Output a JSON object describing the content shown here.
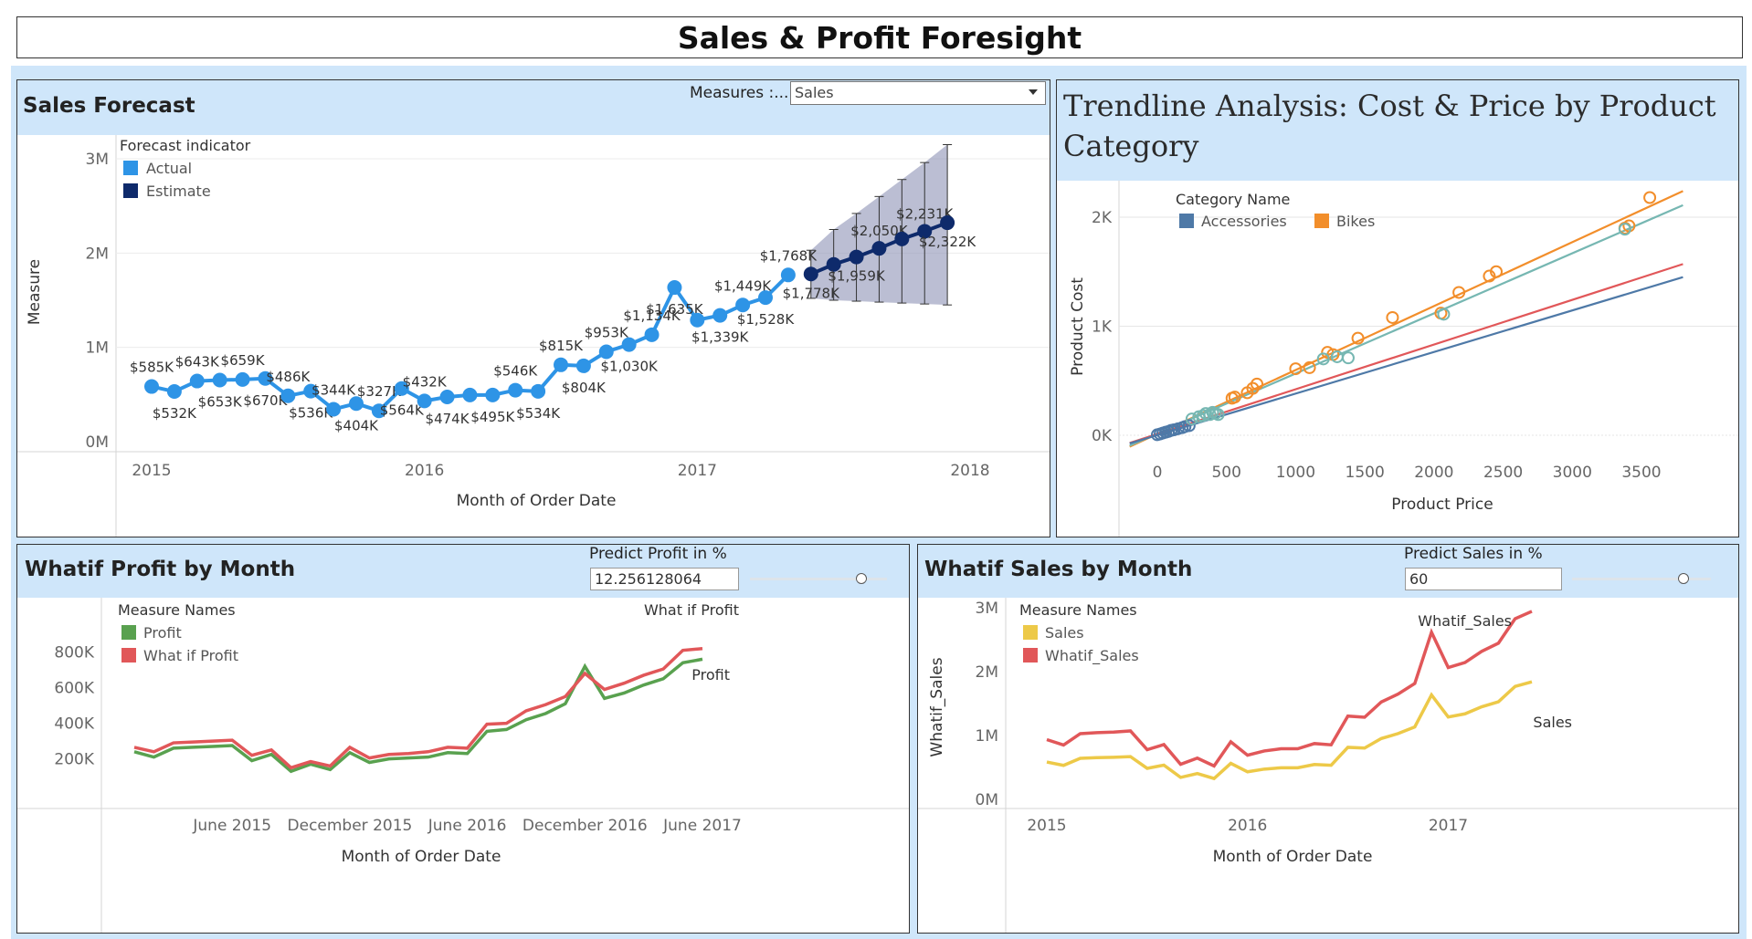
{
  "dashboard": {
    "title": "Sales & Profit Foresight"
  },
  "panels": {
    "sales_forecast": {
      "title": "Sales Forecast",
      "measures_label": "Measures :...",
      "measures_value": "Sales"
    },
    "trendline": {
      "title": "Trendline Analysis: Cost & Price by Product Category"
    },
    "whatif_profit": {
      "title": "Whatif Profit by Month",
      "param_label": "Predict Profit in %",
      "param_value": "12.256128064",
      "slider_fraction": 1.0
    },
    "whatif_sales": {
      "title": "Whatif Sales by Month",
      "param_label": "Predict Sales in %",
      "param_value": "60",
      "slider_fraction": 1.0
    }
  },
  "chart_data": [
    {
      "id": "sales_forecast",
      "type": "line",
      "xlabel": "Month of Order Date",
      "ylabel": "Measure",
      "x_ticks": [
        "2015",
        "2016",
        "2017",
        "2018"
      ],
      "y_ticks": [
        "0M",
        "1M",
        "2M",
        "3M"
      ],
      "ylim": [
        0,
        3000000
      ],
      "legend": {
        "title": "Forecast indicator",
        "placement": "top-left",
        "entries": [
          "Actual",
          "Estimate"
        ]
      },
      "colors": {
        "Actual": "#2e94e6",
        "Estimate": "#0e2a6b",
        "band": "#8d93b6"
      },
      "series": [
        {
          "name": "Actual",
          "x": [
            "2015-01",
            "2015-02",
            "2015-03",
            "2015-04",
            "2015-05",
            "2015-06",
            "2015-07",
            "2015-08",
            "2015-09",
            "2015-10",
            "2015-11",
            "2015-12",
            "2016-01",
            "2016-02",
            "2016-03",
            "2016-04",
            "2016-05",
            "2016-06",
            "2016-07",
            "2016-08",
            "2016-09",
            "2016-10",
            "2016-11",
            "2016-12",
            "2017-01",
            "2017-02",
            "2017-03",
            "2017-04",
            "2017-05"
          ],
          "values": [
            585000,
            532000,
            643000,
            653000,
            659000,
            670000,
            486000,
            536000,
            344000,
            404000,
            327000,
            564000,
            432000,
            474000,
            495000,
            495000,
            546000,
            534000,
            815000,
            804000,
            953000,
            1030000,
            1134000,
            1635000,
            1290000,
            1339000,
            1449000,
            1528000,
            1768000
          ],
          "labels": [
            "$585K",
            "$532K",
            "$643K",
            "$653K",
            "$659K",
            "$670K",
            "$486K",
            "$536K",
            "$344K",
            "$404K",
            "$327K",
            "$564K",
            "$432K",
            "$474K",
            "",
            "$495K",
            "$546K",
            "$534K",
            "$815K",
            "$804K",
            "$953K",
            "$1,030K",
            "$1,134K",
            "$1,635K",
            "",
            "$1,339K",
            "$1,449K",
            "$1,528K",
            "$1,768K"
          ]
        },
        {
          "name": "Estimate",
          "x": [
            "2017-06",
            "2017-07",
            "2017-08",
            "2017-09",
            "2017-10",
            "2017-11",
            "2017-12"
          ],
          "values": [
            1778000,
            1880000,
            1959000,
            2050000,
            2150000,
            2231000,
            2322000
          ],
          "labels": [
            "$1,778K",
            "",
            "$1,959K",
            "$2,050K",
            "",
            "$2,231K",
            "$2,322K"
          ],
          "band_low": [
            1520000,
            1500000,
            1490000,
            1480000,
            1470000,
            1460000,
            1450000
          ],
          "band_high": [
            2030000,
            2250000,
            2420000,
            2600000,
            2780000,
            2960000,
            3150000
          ]
        }
      ]
    },
    {
      "id": "trendline",
      "type": "scatter",
      "xlabel": "Product Price",
      "ylabel": "Product Cost",
      "x_ticks": [
        "0",
        "500",
        "1000",
        "1500",
        "2000",
        "2500",
        "3000",
        "3500"
      ],
      "y_ticks": [
        "0K",
        "1K",
        "2K"
      ],
      "xlim": [
        -200,
        3800
      ],
      "ylim": [
        -150,
        2200
      ],
      "legend": {
        "title": "Category Name",
        "placement": "top-left",
        "entries": [
          "Accessories",
          "Bikes"
        ]
      },
      "colors": {
        "Accessories": "#4e79a7",
        "Bikes": "#f28e2b",
        "Clothing": "#76b7b2",
        "Components": "#e15759"
      },
      "series": [
        {
          "name": "Accessories",
          "x": [
            0,
            20,
            40,
            60,
            80,
            100,
            120,
            150,
            180,
            200,
            230
          ],
          "y": [
            5,
            12,
            20,
            28,
            35,
            45,
            50,
            60,
            70,
            80,
            88
          ]
        },
        {
          "name": "Bikes",
          "x": [
            540,
            560,
            650,
            690,
            720,
            1000,
            1100,
            1230,
            1270,
            1450,
            1700,
            2050,
            2180,
            2400,
            2450,
            3380,
            3410,
            3560
          ],
          "y": [
            340,
            350,
            390,
            430,
            470,
            610,
            620,
            760,
            740,
            890,
            1080,
            1120,
            1310,
            1460,
            1500,
            1900,
            1920,
            2180
          ]
        },
        {
          "name": "Clothing",
          "x": [
            250,
            300,
            330,
            350,
            380,
            400,
            420,
            440,
            1200,
            1300,
            1380,
            2070,
            3380
          ],
          "y": [
            150,
            170,
            180,
            200,
            190,
            210,
            200,
            190,
            700,
            720,
            710,
            1110,
            1890
          ]
        },
        {
          "name": "Components",
          "x": [],
          "y": []
        }
      ],
      "trendlines": [
        {
          "name": "Bikes",
          "x": [
            -200,
            3800
          ],
          "y": [
            -105,
            2240
          ]
        },
        {
          "name": "Clothing",
          "x": [
            -200,
            3800
          ],
          "y": [
            -95,
            2110
          ]
        },
        {
          "name": "Components",
          "x": [
            -200,
            3800
          ],
          "y": [
            -70,
            1570
          ]
        },
        {
          "name": "Accessories",
          "x": [
            -200,
            3800
          ],
          "y": [
            -75,
            1450
          ]
        }
      ]
    },
    {
      "id": "whatif_profit",
      "type": "line",
      "xlabel": "Month of Order Date",
      "ylabel": "",
      "x_ticks": [
        "June 2015",
        "December 2015",
        "June 2016",
        "December 2016",
        "June 2017"
      ],
      "y_ticks": [
        "200K",
        "400K",
        "600K",
        "800K"
      ],
      "ylim": [
        80000,
        880000
      ],
      "legend": {
        "title": "Measure Names",
        "placement": "top-left",
        "entries": [
          "Profit",
          "What if Profit"
        ]
      },
      "line_labels": [
        "What if Profit",
        "Profit"
      ],
      "colors": {
        "Profit": "#59a14f",
        "What if Profit": "#e15759"
      },
      "x": [
        "2015-01",
        "2015-02",
        "2015-03",
        "2015-04",
        "2015-05",
        "2015-06",
        "2015-07",
        "2015-08",
        "2015-09",
        "2015-10",
        "2015-11",
        "2015-12",
        "2016-01",
        "2016-02",
        "2016-03",
        "2016-04",
        "2016-05",
        "2016-06",
        "2016-07",
        "2016-08",
        "2016-09",
        "2016-10",
        "2016-11",
        "2016-12",
        "2017-01",
        "2017-02",
        "2017-03",
        "2017-04",
        "2017-05",
        "2017-06"
      ],
      "series": [
        {
          "name": "Profit",
          "values": [
            240000,
            210000,
            260000,
            265000,
            270000,
            275000,
            190000,
            225000,
            130000,
            170000,
            140000,
            235000,
            180000,
            200000,
            205000,
            210000,
            235000,
            230000,
            355000,
            365000,
            420000,
            455000,
            510000,
            720000,
            540000,
            570000,
            615000,
            650000,
            740000,
            760000
          ]
        },
        {
          "name": "What if Profit",
          "values": [
            265000,
            240000,
            290000,
            295000,
            300000,
            305000,
            220000,
            250000,
            150000,
            185000,
            160000,
            265000,
            205000,
            225000,
            230000,
            240000,
            265000,
            260000,
            395000,
            400000,
            470000,
            505000,
            550000,
            680000,
            590000,
            625000,
            670000,
            705000,
            810000,
            820000
          ]
        }
      ]
    },
    {
      "id": "whatif_sales",
      "type": "line",
      "xlabel": "Month of Order Date",
      "ylabel": "Whatif_Sales",
      "x_ticks": [
        "2015",
        "2016",
        "2017"
      ],
      "y_ticks": [
        "0M",
        "1M",
        "2M",
        "3M"
      ],
      "ylim": [
        0,
        3000000
      ],
      "legend": {
        "title": "Measure Names",
        "placement": "top-left",
        "entries": [
          "Sales",
          "Whatif_Sales"
        ]
      },
      "line_labels": [
        "Whatif_Sales",
        "Sales"
      ],
      "colors": {
        "Sales": "#edc948",
        "Whatif_Sales": "#e15759"
      },
      "x": [
        "2015-01",
        "2015-02",
        "2015-03",
        "2015-04",
        "2015-05",
        "2015-06",
        "2015-07",
        "2015-08",
        "2015-09",
        "2015-10",
        "2015-11",
        "2015-12",
        "2016-01",
        "2016-02",
        "2016-03",
        "2016-04",
        "2016-05",
        "2016-06",
        "2016-07",
        "2016-08",
        "2016-09",
        "2016-10",
        "2016-11",
        "2016-12",
        "2017-01",
        "2017-02",
        "2017-03",
        "2017-04",
        "2017-05",
        "2017-06"
      ],
      "series": [
        {
          "name": "Sales",
          "values": [
            585000,
            532000,
            643000,
            653000,
            659000,
            670000,
            486000,
            536000,
            344000,
            404000,
            327000,
            564000,
            432000,
            474000,
            495000,
            495000,
            546000,
            534000,
            815000,
            804000,
            953000,
            1030000,
            1134000,
            1635000,
            1290000,
            1339000,
            1449000,
            1528000,
            1768000,
            1840000
          ]
        },
        {
          "name": "Whatif_Sales",
          "values": [
            936000,
            851000,
            1029000,
            1045000,
            1054000,
            1072000,
            778000,
            858000,
            550000,
            646000,
            523000,
            902000,
            691000,
            758000,
            792000,
            792000,
            874000,
            854000,
            1304000,
            1286000,
            1525000,
            1648000,
            1814000,
            2616000,
            2064000,
            2142000,
            2318000,
            2445000,
            2829000,
            2944000
          ]
        }
      ]
    }
  ]
}
